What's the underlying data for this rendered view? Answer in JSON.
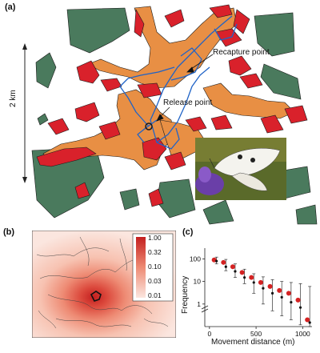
{
  "panel_a": {
    "label": "(a)",
    "scale_label": "2 km",
    "annotations": {
      "recapture": "Recapture point",
      "release": "Release point"
    },
    "colors": {
      "forest": "#4a7a5d",
      "habitat_red": "#d9212b",
      "habitat_orange": "#e88f44",
      "track_blue": "#1f63c7"
    }
  },
  "panel_b": {
    "label": "(b)",
    "legend": [
      "1.00",
      "0.32",
      "0.10",
      "0.03",
      "0.01"
    ],
    "colors": {
      "high": "#c41f1f",
      "low": "#fbe6df"
    }
  },
  "panel_c": {
    "label": "(c)",
    "chart_data": {
      "type": "scatter",
      "xlabel": "Movement distance (m)",
      "ylabel": "Frequency",
      "x_ticks": [
        "0",
        "500",
        "1000"
      ],
      "y_ticks": [
        "100",
        "10",
        "1"
      ],
      "xlim": [
        -50,
        1100
      ],
      "y_scale": "log",
      "ylim": [
        0.1,
        300
      ],
      "grid": false,
      "series": [
        {
          "color": "#d42222",
          "marker": "circle",
          "x": [
            50,
            150,
            250,
            350,
            450,
            550,
            650,
            750,
            850,
            950,
            1050
          ],
          "y": [
            90,
            70,
            45,
            25,
            15,
            9,
            6,
            4,
            3,
            1.5,
            0.2
          ]
        },
        {
          "color": "#111111",
          "marker": "small-dot",
          "x": [
            50,
            150,
            250,
            350,
            450,
            550,
            650,
            750,
            850,
            950,
            1050
          ],
          "y": [
            80,
            45,
            28,
            15,
            9,
            5,
            3,
            2,
            1.2,
            0.7,
            0.15
          ]
        }
      ],
      "error_bars": {
        "x": [
          50,
          150,
          250,
          350,
          450,
          550,
          650,
          750,
          850,
          950,
          1050
        ],
        "low": [
          60,
          30,
          15,
          8,
          3,
          1,
          0.5,
          0.3,
          0.2,
          0.12,
          0.1
        ],
        "high": [
          120,
          95,
          60,
          35,
          22,
          16,
          12,
          10,
          9,
          8,
          6
        ]
      }
    }
  }
}
